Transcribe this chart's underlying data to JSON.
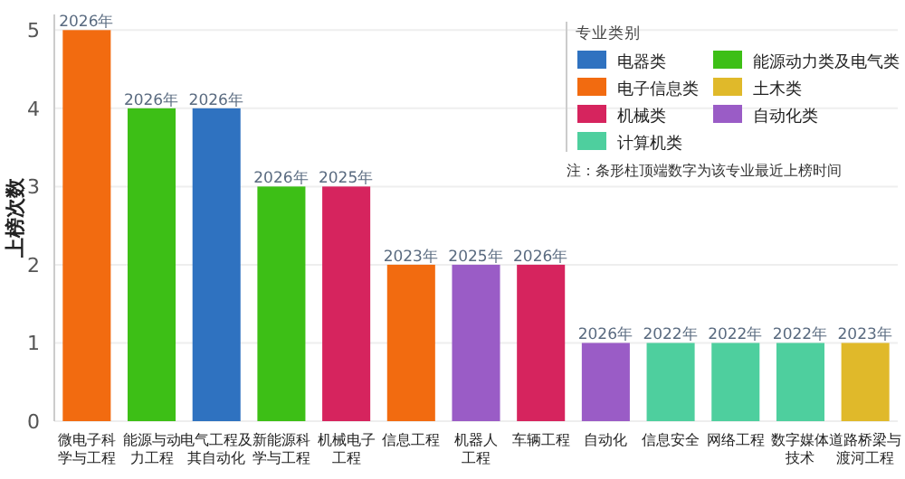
{
  "chart_data": {
    "type": "bar",
    "ylabel": "上榜次数",
    "legend_title": "专业类别",
    "legend": "top right",
    "grid": "y",
    "annotations": [
      "注：条形柱顶端数字为该专业最近上榜时间",
      {
        "text": "2026年",
        "x": "微电子科学与工程",
        "y": 5
      },
      {
        "text": "2026年",
        "x": "能源与动力工程",
        "y": 4
      },
      {
        "text": "2026年",
        "x": "电气工程及其自动化",
        "y": 4
      },
      {
        "text": "2026年",
        "x": "新能源科学与工程",
        "y": 3
      },
      {
        "text": "2025年",
        "x": "机械电子工程",
        "y": 3
      },
      {
        "text": "2023年",
        "x": "信息工程",
        "y": 2
      },
      {
        "text": "2025年",
        "x": "机器人工程",
        "y": 2
      },
      {
        "text": "2026年",
        "x": "车辆工程",
        "y": 2
      },
      {
        "text": "2026年",
        "x": "自动化",
        "y": 1
      },
      {
        "text": "2022年",
        "x": "信息安全",
        "y": 1
      },
      {
        "text": "2022年",
        "x": "网络工程",
        "y": 1
      },
      {
        "text": "2022年",
        "x": "数字媒体技术",
        "y": 1
      },
      {
        "text": "2023年",
        "x": "道路桥梁与渡河工程",
        "y": 1
      }
    ],
    "categories": [
      "微电子科学与工程",
      "能源与动力工程",
      "电气工程及其自动化",
      "新能源科学与工程",
      "机械电子工程",
      "信息工程",
      "机器人工程",
      "车辆工程",
      "自动化",
      "信息安全",
      "网络工程",
      "数字媒体技术",
      "道路桥梁与渡河工程"
    ],
    "ylim": [
      0,
      5.2
    ],
    "yticks": [
      0,
      1,
      2,
      3,
      4,
      5
    ],
    "series": [
      {
        "name": "电器类",
        "color": "#2f72c0",
        "values": [
          null,
          null,
          4,
          null,
          null,
          null,
          null,
          null,
          null,
          null,
          null,
          null,
          null
        ]
      },
      {
        "name": "电子信息类",
        "color": "#f26b10",
        "values": [
          5,
          null,
          null,
          null,
          null,
          2,
          null,
          null,
          null,
          null,
          null,
          null,
          null
        ]
      },
      {
        "name": "机械类",
        "color": "#d6245e",
        "values": [
          null,
          null,
          null,
          null,
          3,
          null,
          null,
          2,
          null,
          null,
          null,
          null,
          null
        ]
      },
      {
        "name": "计算机类",
        "color": "#4ecf9e",
        "values": [
          null,
          null,
          null,
          null,
          null,
          null,
          null,
          null,
          null,
          1,
          1,
          1,
          null
        ]
      },
      {
        "name": "能源动力类及电气类",
        "color": "#3dbf16",
        "values": [
          null,
          4,
          null,
          3,
          null,
          null,
          null,
          null,
          null,
          null,
          null,
          null,
          null
        ]
      },
      {
        "name": "土木类",
        "color": "#e0b92a",
        "values": [
          null,
          null,
          null,
          null,
          null,
          null,
          null,
          null,
          null,
          null,
          null,
          null,
          1
        ]
      },
      {
        "name": "自动化类",
        "color": "#9a5cc6",
        "values": [
          null,
          null,
          null,
          null,
          null,
          null,
          2,
          null,
          1,
          null,
          null,
          null,
          null
        ]
      }
    ]
  }
}
